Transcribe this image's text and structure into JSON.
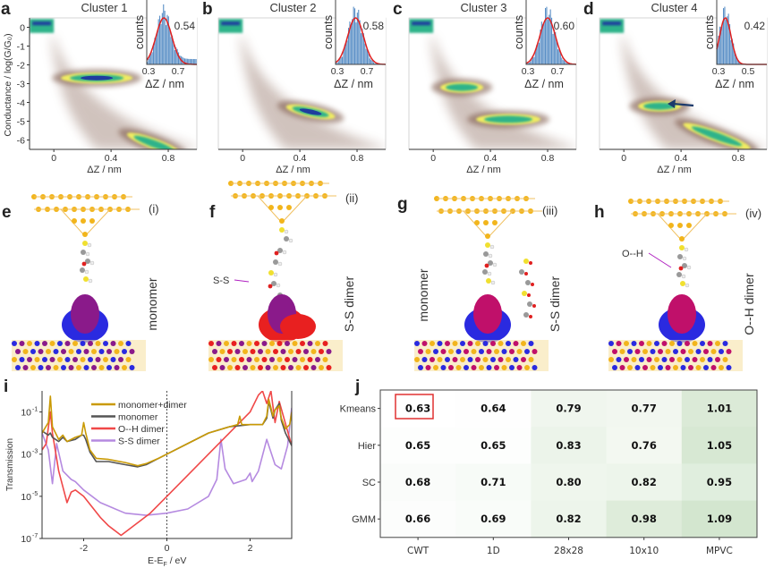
{
  "panels": {
    "a": "a",
    "b": "b",
    "c": "c",
    "d": "d",
    "e": "e",
    "f": "f",
    "g": "g",
    "h": "h",
    "i": "i",
    "j": "j"
  },
  "colors": {
    "gold": "#c99a06",
    "monomer": "#555555",
    "oh_dimer": "#f04848",
    "ss_dimer": "#b58ae0",
    "heat_low": "#ffffff",
    "heat_high": "#d3e6cf",
    "highlight": "#e03030",
    "haze": "#7a5545",
    "density_hi": "#1f3d9e",
    "density_mid": "#2fb38a",
    "density_lo": "#f0ec62"
  },
  "chart_data": [
    {
      "type": "heatmap",
      "id": "a",
      "title": "Cluster 1",
      "ylabel": "Conductance / log(G/G₀)",
      "xlabel": "ΔZ / nm",
      "xticks": [
        "0",
        "0.4",
        "0.8"
      ],
      "xtick_values": [
        0,
        0.4,
        0.8
      ],
      "yticks": [
        "0",
        "-1",
        "-2",
        "-3",
        "-4",
        "-5",
        "-6"
      ],
      "ytick_values": [
        0,
        -1,
        -2,
        -3,
        -4,
        -5,
        -6
      ],
      "xlim": [
        -0.17,
        1.0
      ],
      "ylim": [
        -6.5,
        0.5
      ],
      "high_density_regions": [
        {
          "x": [
            -0.17,
            0
          ],
          "y": 0
        },
        {
          "x": [
            0.05,
            0.55
          ],
          "y": -2.7
        },
        {
          "x": [
            0.5,
            0.9
          ],
          "y": -6.2
        }
      ],
      "inset": {
        "ylabel": "counts",
        "xlabel": "ΔZ / nm",
        "xticks": [
          "0.3",
          "0.7"
        ],
        "peak_label": "0.54",
        "peak": 0.54
      }
    },
    {
      "type": "heatmap",
      "id": "b",
      "title": "Cluster 2",
      "xlabel": "ΔZ / nm",
      "xticks": [
        "0",
        "0.4",
        "0.8"
      ],
      "xtick_values": [
        0,
        0.4,
        0.8
      ],
      "xlim": [
        -0.17,
        1.0
      ],
      "ylim": [
        -6.5,
        0.5
      ],
      "high_density_regions": [
        {
          "x": [
            -0.17,
            0
          ],
          "y": 0.2
        },
        {
          "x": [
            0.3,
            0.65
          ],
          "y": -4.5
        }
      ],
      "inset": {
        "ylabel": "counts",
        "xlabel": "ΔZ / nm",
        "xticks": [
          "0.3",
          "0.7"
        ],
        "peak_label": "0.58",
        "peak": 0.58
      }
    },
    {
      "type": "heatmap",
      "id": "c",
      "title": "Cluster 3",
      "xlabel": "ΔZ / nm",
      "xticks": [
        "0",
        "0.4",
        "0.8"
      ],
      "xtick_values": [
        0,
        0.4,
        0.8
      ],
      "xlim": [
        -0.17,
        1.0
      ],
      "ylim": [
        -6.5,
        0.5
      ],
      "high_density_regions": [
        {
          "x": [
            -0.17,
            0
          ],
          "y": 0.2
        },
        {
          "x": [
            0.05,
            0.35
          ],
          "y": -3.2
        },
        {
          "x": [
            0.3,
            0.75
          ],
          "y": -4.9
        }
      ],
      "inset": {
        "ylabel": "counts",
        "xlabel": "ΔZ / nm",
        "xticks": [
          "0.3",
          "0.7"
        ],
        "peak_label": "0.60",
        "peak": 0.6
      }
    },
    {
      "type": "heatmap",
      "id": "d",
      "title": "Cluster 4",
      "xlabel": "ΔZ / nm",
      "xticks": [
        "0",
        "0.4",
        "0.8"
      ],
      "xtick_values": [
        0,
        0.4,
        0.8
      ],
      "xlim": [
        -0.17,
        1.0
      ],
      "ylim": [
        -6.5,
        0.5
      ],
      "high_density_regions": [
        {
          "x": [
            -0.17,
            0
          ],
          "y": 0.2
        },
        {
          "x": [
            0.1,
            0.4
          ],
          "y": -4.2
        },
        {
          "x": [
            0.4,
            0.9
          ],
          "y": -5.8
        }
      ],
      "arrow_annotation": true,
      "inset": {
        "ylabel": "counts",
        "xlabel": "ΔZ / nm",
        "xticks": [
          "0.3",
          "0.5"
        ],
        "peak_label": "0.42",
        "peak": 0.42
      }
    },
    {
      "type": "line",
      "id": "i",
      "ylabel": "Transmission",
      "xlabel": "E-E",
      "xlabel_sub": "F",
      "xlabel_unit": " / eV",
      "xlim": [
        -3,
        3
      ],
      "ylim_log10": [
        -7,
        0
      ],
      "yscale": "log",
      "xticks": [
        "-2",
        "0",
        "2"
      ],
      "xtick_values": [
        -2,
        0,
        2
      ],
      "yticks": [
        {
          "base": "10",
          "exp": "-1",
          "value": -1
        },
        {
          "base": "10",
          "exp": "-3",
          "value": -3
        },
        {
          "base": "10",
          "exp": "-5",
          "value": -5
        },
        {
          "base": "10",
          "exp": "-7",
          "value": -7
        }
      ],
      "vline": 0,
      "legend_position": "top-center",
      "series": [
        {
          "name": "monomer+dimer",
          "color": "#c99a06",
          "x": [
            -3,
            -2.85,
            -2.8,
            -2.75,
            -2.6,
            -2.5,
            -2.4,
            -2.2,
            -2.05,
            -2.0,
            -1.95,
            -1.85,
            -1.7,
            -1.4,
            -1.0,
            -0.7,
            -0.5,
            -0.2,
            0,
            0.5,
            1.0,
            1.5,
            1.7,
            1.75,
            1.8,
            2.0,
            2.3,
            2.4,
            2.45,
            2.55,
            2.6,
            2.7,
            2.75,
            2.85,
            2.95,
            3.0
          ],
          "log10y": [
            -2,
            -1.5,
            -0.25,
            -1.7,
            -2.3,
            -2.1,
            -2.4,
            -2.2,
            -2.1,
            -1.5,
            -2.0,
            -2.8,
            -3.2,
            -3.25,
            -3.4,
            -3.55,
            -3.45,
            -3.2,
            -3.0,
            -2.5,
            -2.0,
            -1.7,
            -1.6,
            -1.2,
            -1.6,
            -1.6,
            -1.6,
            -1.2,
            -0.4,
            -1.2,
            -0.9,
            -0.7,
            -1.3,
            -1.8,
            -1.6,
            -1.0
          ]
        },
        {
          "name": "monomer",
          "color": "#555555",
          "x": [
            -3,
            -2.85,
            -2.8,
            -2.75,
            -2.6,
            -2.5,
            -2.4,
            -2.2,
            -2.05,
            -2.0,
            -1.95,
            -1.85,
            -1.7,
            -1.4,
            -1.0,
            -0.7,
            -0.5,
            -0.2,
            0,
            0.5,
            1.0,
            1.5,
            2.0,
            2.3,
            2.4,
            2.45,
            2.55,
            2.6,
            2.7,
            2.75,
            2.85,
            2.95,
            3.0
          ],
          "log10y": [
            -1.9,
            -2.1,
            -2.0,
            -2.2,
            -2.4,
            -2.2,
            -2.4,
            -2.3,
            -2.1,
            -2.1,
            -2.3,
            -2.9,
            -3.35,
            -3.35,
            -3.5,
            -3.6,
            -3.5,
            -3.2,
            -3.0,
            -2.5,
            -2.0,
            -1.7,
            -1.6,
            -1.6,
            -1.3,
            -0.5,
            -1.3,
            -0.9,
            -0.6,
            -1.4,
            -2.0,
            -2.4,
            -2.6
          ]
        },
        {
          "name": "O--H dimer",
          "color": "#f04848",
          "x": [
            -3,
            -2.9,
            -2.8,
            -2.75,
            -2.6,
            -2.4,
            -2.3,
            -2.2,
            -2.0,
            -1.8,
            -1.6,
            -1.4,
            -1.1,
            -0.8,
            -0.4,
            0,
            0.5,
            1.0,
            1.5,
            2.0,
            2.2,
            2.3,
            2.4,
            2.5,
            2.6,
            2.7,
            2.8,
            3.0
          ],
          "log10y": [
            -2.8,
            -2.5,
            -1.0,
            -2.0,
            -3.8,
            -5.3,
            -4.8,
            -4.7,
            -5.0,
            -5.5,
            -6.0,
            -6.4,
            -6.85,
            -6.4,
            -5.8,
            -5.0,
            -4.0,
            -3.0,
            -2.0,
            -1.0,
            -0.2,
            0,
            -0.6,
            0,
            -1.5,
            -0.5,
            -1.2,
            -2.6
          ]
        },
        {
          "name": "S-S dimer",
          "color": "#b58ae0",
          "x": [
            -3,
            -2.85,
            -2.75,
            -2.65,
            -2.5,
            -2.3,
            -2.2,
            -2.0,
            -1.6,
            -1.0,
            -0.5,
            0,
            0.5,
            1.0,
            1.2,
            1.3,
            1.4,
            1.6,
            1.9,
            2.0,
            2.05,
            2.2,
            2.4,
            2.6,
            2.75,
            2.9,
            3.0
          ],
          "log10y": [
            -2.0,
            -2.8,
            -4.4,
            -2.5,
            -3.8,
            -4.2,
            -4.3,
            -4.7,
            -5.3,
            -5.8,
            -5.9,
            -5.8,
            -5.6,
            -5.0,
            -4.2,
            -2.3,
            -3.7,
            -4.4,
            -4.2,
            -3.9,
            -4.3,
            -3.8,
            -2.3,
            -3.5,
            -3.7,
            -2.6,
            -0.8
          ]
        }
      ]
    },
    {
      "type": "table",
      "id": "j",
      "row_labels": [
        "Kmeans",
        "Hier",
        "SC",
        "GMM"
      ],
      "col_labels": [
        "CWT",
        "1D",
        "28x28",
        "10x10",
        "MPVC"
      ],
      "values": [
        [
          "0.63",
          "0.64",
          "0.79",
          "0.77",
          "1.01"
        ],
        [
          "0.65",
          "0.65",
          "0.83",
          "0.76",
          "1.05"
        ],
        [
          "0.68",
          "0.71",
          "0.80",
          "0.82",
          "0.95"
        ],
        [
          "0.66",
          "0.69",
          "0.82",
          "0.98",
          "1.09"
        ]
      ],
      "highlighted_cell": [
        0,
        0
      ]
    }
  ],
  "structures": [
    {
      "id": "e",
      "roman": "(i)",
      "label": "monomer",
      "orbital_colors": [
        "#2a2ae0",
        "#8a1a8a"
      ]
    },
    {
      "id": "f",
      "roman": "(ii)",
      "label": "S-S dimer",
      "annotation": "S-S",
      "orbital_colors": [
        "#e82020",
        "#8a1a8a"
      ]
    },
    {
      "id": "g",
      "roman": "(iii)",
      "label_left": "monomer",
      "label": "S-S dimer",
      "orbital_colors": [
        "#2a2ae0",
        "#c0106a"
      ]
    },
    {
      "id": "h",
      "roman": "(iv)",
      "label": "O--H dimer",
      "annotation": "O--H",
      "orbital_colors": [
        "#2a2ae0",
        "#c0106a"
      ]
    }
  ]
}
